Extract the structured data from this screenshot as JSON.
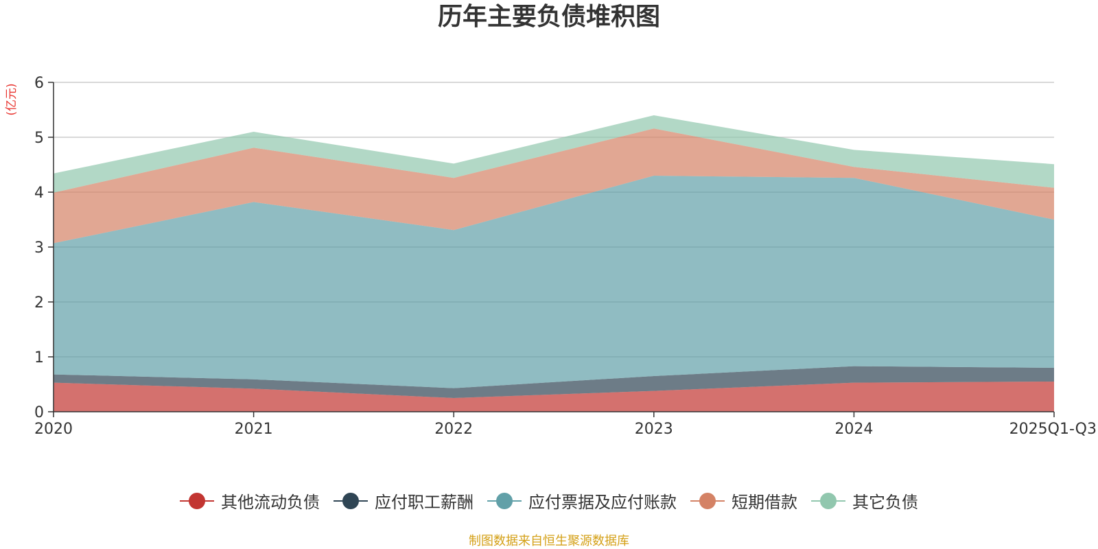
{
  "chart_data": {
    "type": "area",
    "stacked": true,
    "title": "历年主要负债堆积图",
    "ylabel": "(亿元)",
    "xlabel": "",
    "categories": [
      "2020",
      "2021",
      "2022",
      "2023",
      "2024",
      "2025Q1-Q3"
    ],
    "ylim": [
      0,
      6
    ],
    "yticks": [
      0,
      1,
      2,
      3,
      4,
      5,
      6
    ],
    "grid": true,
    "legend_position": "bottom",
    "series": [
      {
        "name": "其他流动负债",
        "color": "#c23531",
        "values": [
          0.53,
          0.42,
          0.25,
          0.38,
          0.53,
          0.55
        ]
      },
      {
        "name": "应付职工薪酬",
        "color": "#2f4554",
        "values": [
          0.15,
          0.17,
          0.18,
          0.27,
          0.3,
          0.25
        ]
      },
      {
        "name": "应付票据及应付账款",
        "color": "#61a0a8",
        "values": [
          2.39,
          3.23,
          2.88,
          3.65,
          3.43,
          2.7
        ]
      },
      {
        "name": "短期借款",
        "color": "#d48265",
        "values": [
          0.92,
          0.99,
          0.95,
          0.86,
          0.2,
          0.58
        ]
      },
      {
        "name": "其它负债",
        "color": "#91c7ae",
        "values": [
          0.35,
          0.29,
          0.26,
          0.24,
          0.31,
          0.43
        ]
      }
    ]
  },
  "source_note": "制图数据来自恒生聚源数据库"
}
